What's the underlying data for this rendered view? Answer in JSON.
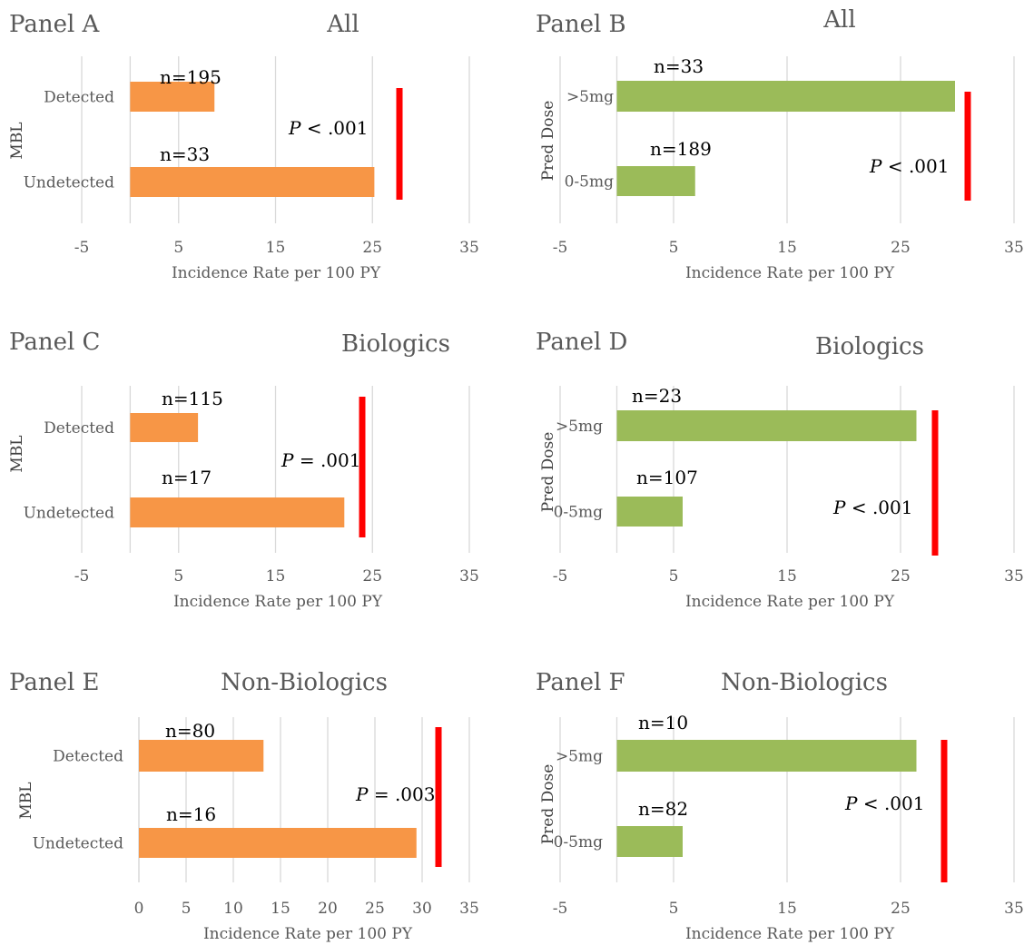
{
  "colors": {
    "orange": "#F79646",
    "green": "#9BBB59",
    "sig_line": "#FF0000"
  },
  "chart_data": [
    {
      "type": "bar",
      "orientation": "horizontal",
      "panel_label": "Panel A",
      "title": "All",
      "ylabel": "MBL",
      "xlabel": "Incidence Rate per 100 PY",
      "xlim": [
        -5,
        35
      ],
      "xticks": [
        "-5",
        "5",
        "15",
        "25",
        "35"
      ],
      "categories": [
        "Detected",
        "Undetected"
      ],
      "values": [
        8.7,
        25.2
      ],
      "bar_labels": [
        "n=195",
        "n=33"
      ],
      "color": "orange",
      "p_prefix": "P",
      "p_value": " < .001"
    },
    {
      "type": "bar",
      "orientation": "horizontal",
      "panel_label": "Panel B",
      "title": "All",
      "ylabel": "Pred Dose",
      "xlabel": "Incidence Rate per 100 PY",
      "xlim": [
        -5,
        35
      ],
      "xticks": [
        "-5",
        "5",
        "15",
        "25",
        "35"
      ],
      "categories": [
        ">5mg",
        "0-5mg"
      ],
      "values": [
        29.8,
        6.9
      ],
      "bar_labels": [
        "n=33",
        "n=189"
      ],
      "color": "green",
      "p_prefix": "P",
      "p_value": " < .001"
    },
    {
      "type": "bar",
      "orientation": "horizontal",
      "panel_label": "Panel C",
      "title": "Biologics",
      "ylabel": "MBL",
      "xlabel": "Incidence Rate per 100 PY",
      "xlim": [
        -5,
        35
      ],
      "xticks": [
        "-5",
        "5",
        "15",
        "25",
        "35"
      ],
      "categories": [
        "Detected",
        "Undetected"
      ],
      "values": [
        7.0,
        22.1
      ],
      "bar_labels": [
        "n=115",
        "n=17"
      ],
      "color": "orange",
      "p_prefix": "P",
      "p_value": " = .001"
    },
    {
      "type": "bar",
      "orientation": "horizontal",
      "panel_label": "Panel D",
      "title": "Biologics",
      "ylabel": "Pred Dose",
      "xlabel": "Incidence Rate per 100 PY",
      "xlim": [
        -5,
        35
      ],
      "xticks": [
        "-5",
        "5",
        "15",
        "25",
        "35"
      ],
      "categories": [
        ">5mg",
        "0-5mg"
      ],
      "values": [
        26.4,
        5.8
      ],
      "bar_labels": [
        "n=23",
        "n=107"
      ],
      "color": "green",
      "p_prefix": "P",
      "p_value": " < .001"
    },
    {
      "type": "bar",
      "orientation": "horizontal",
      "panel_label": "Panel E",
      "title": "Non-Biologics",
      "ylabel": "MBL",
      "xlabel": "Incidence Rate per 100 PY",
      "xlim": [
        0,
        35
      ],
      "xticks": [
        "0",
        "5",
        "10",
        "15",
        "20",
        "25",
        "30",
        "35"
      ],
      "categories": [
        "Detected",
        "Undetected"
      ],
      "values": [
        13.2,
        29.4
      ],
      "bar_labels": [
        "n=80",
        "n=16"
      ],
      "color": "orange",
      "p_prefix": "P",
      "p_value": " = .003"
    },
    {
      "type": "bar",
      "orientation": "horizontal",
      "panel_label": "Panel F",
      "title": "Non-Biologics",
      "ylabel": "Pred Dose",
      "xlabel": "Incidence Rate per 100 PY",
      "xlim": [
        -5,
        35
      ],
      "xticks": [
        "-5",
        "5",
        "15",
        "25",
        "35"
      ],
      "categories": [
        ">5mg",
        "0-5mg"
      ],
      "values": [
        26.4,
        5.8
      ],
      "bar_labels": [
        "n=10",
        "n=82"
      ],
      "color": "green",
      "p_prefix": "P",
      "p_value": " < .001"
    }
  ]
}
